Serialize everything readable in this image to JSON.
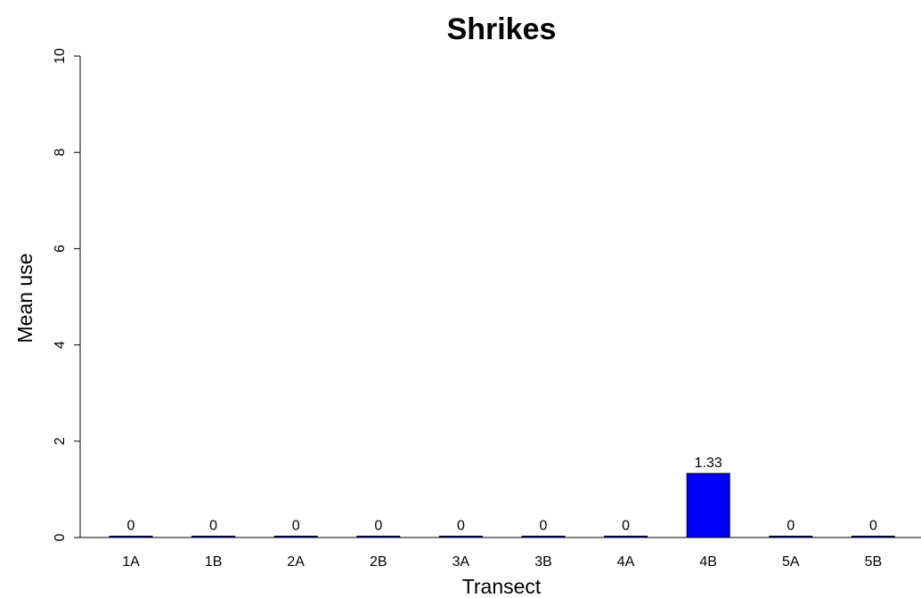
{
  "chart_data": {
    "type": "bar",
    "title": "Shrikes",
    "xlabel": "Transect",
    "ylabel": "Mean use",
    "categories": [
      "1A",
      "1B",
      "2A",
      "2B",
      "3A",
      "3B",
      "4A",
      "4B",
      "5A",
      "5B"
    ],
    "values": [
      0,
      0,
      0,
      0,
      0,
      0,
      0,
      1.33,
      0,
      0
    ],
    "data_labels": [
      "0",
      "0",
      "0",
      "0",
      "0",
      "0",
      "0",
      "1.33",
      "0",
      "0"
    ],
    "ylim": [
      0,
      10
    ],
    "yticks": [
      0,
      2,
      4,
      6,
      8,
      10
    ],
    "bar_color": "#0000ff",
    "grid": false
  }
}
